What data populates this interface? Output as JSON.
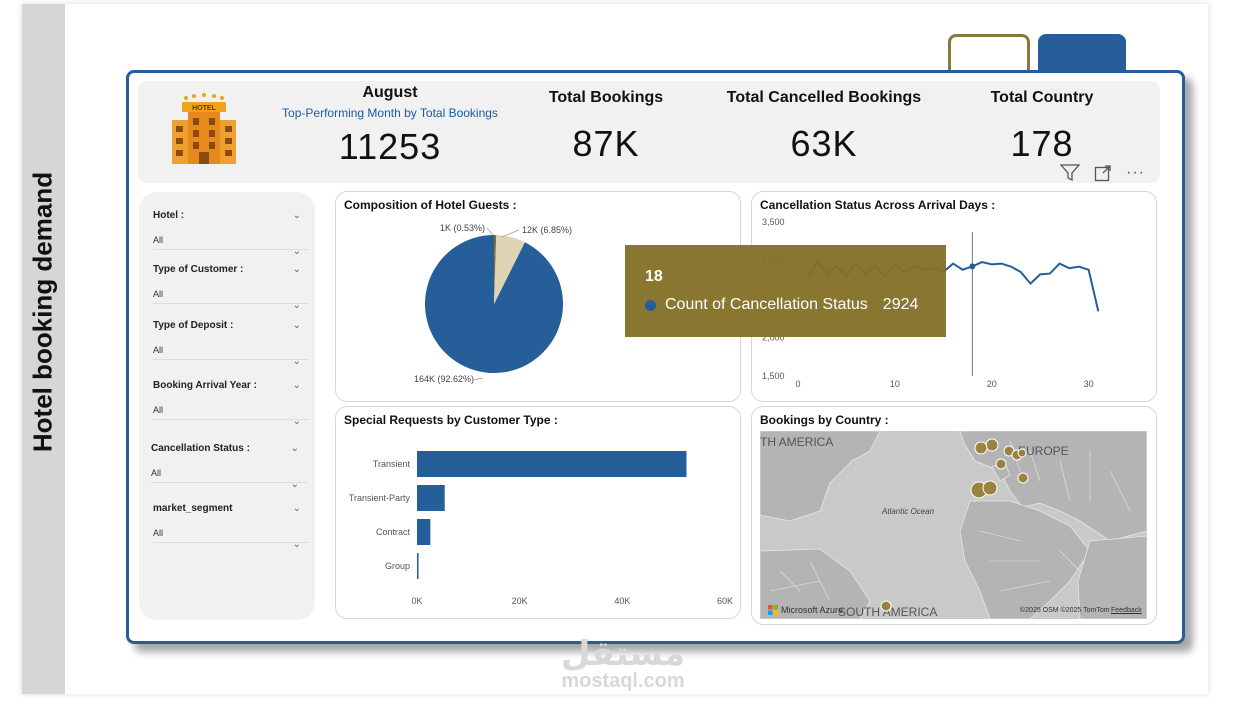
{
  "sidebar_title": "Hotel booking demand",
  "kpis": {
    "month": {
      "label": "August",
      "subtitle": "Top-Performing Month by Total Bookings",
      "value": "11253"
    },
    "total_bookings": {
      "label": "Total Bookings",
      "value": "87K"
    },
    "total_cancelled": {
      "label": "Total Cancelled Bookings",
      "value": "63K"
    },
    "total_country": {
      "label": "Total Country",
      "value": "178"
    }
  },
  "hotel_icon_text": "HOTEL",
  "visual_tools": [
    "filter-icon",
    "focus-mode-icon",
    "more-options-icon"
  ],
  "more_options_glyph": "···",
  "slicers": [
    {
      "label": "Hotel :",
      "value": "All"
    },
    {
      "label": "Type of Customer :",
      "value": "All"
    },
    {
      "label": "Type of Deposit :",
      "value": "All"
    },
    {
      "label": "Booking Arrival Year :",
      "value": "All"
    },
    {
      "label": "Cancellation Status :",
      "value": "All"
    },
    {
      "label": "market_segment",
      "value": "All"
    }
  ],
  "chart_data": [
    {
      "type": "pie",
      "title": "Composition of Hotel Guests :",
      "slices": [
        {
          "label": "164K (92.62%)",
          "value": 92.62,
          "color": "#255e98"
        },
        {
          "label": "12K (6.85%)",
          "value": 6.85,
          "color": "#ddd5b5"
        },
        {
          "label": "1K (0.53%)",
          "value": 0.53,
          "color": "#847028"
        }
      ]
    },
    {
      "type": "line",
      "title": "Cancellation Status Across Arrival Days :",
      "x": [
        1,
        2,
        3,
        4,
        5,
        6,
        7,
        8,
        9,
        10,
        11,
        12,
        13,
        14,
        15,
        16,
        17,
        18,
        19,
        20,
        21,
        22,
        23,
        24,
        25,
        26,
        27,
        28,
        29,
        30,
        31
      ],
      "y": [
        2780,
        2980,
        2830,
        2930,
        2800,
        2960,
        2820,
        2940,
        2790,
        2950,
        2840,
        2930,
        2880,
        2900,
        2850,
        2960,
        2880,
        2924,
        2980,
        2950,
        2960,
        2920,
        2850,
        2700,
        2820,
        2830,
        2960,
        2900,
        2920,
        2880,
        2340
      ],
      "ylim": [
        1500,
        3500
      ],
      "yticks": [
        "3,500",
        "3,000",
        "2,500",
        "2,000",
        "1,500"
      ],
      "xticks": [
        "0",
        "10",
        "20",
        "30"
      ],
      "xlim": [
        0,
        32
      ],
      "color": "#255e98"
    },
    {
      "type": "bar",
      "title": "Special Requests by Customer Type :",
      "categories": [
        "Transient",
        "Transient-Party",
        "Contract",
        "Group"
      ],
      "values": [
        52500,
        5400,
        2600,
        300
      ],
      "xlim": [
        0,
        60000
      ],
      "xticks": [
        "0K",
        "20K",
        "40K",
        "60K"
      ],
      "color": "#255e98"
    }
  ],
  "tooltip": {
    "header": "18",
    "measure": "Count of Cancellation Status",
    "value": "2924"
  },
  "map": {
    "title": "Bookings by Country :",
    "labels": {
      "north_america": "TH AMERICA",
      "europe": "EUROPE",
      "ocean": "Atlantic Ocean",
      "south_america": "SOUTH AMERICA"
    },
    "credit_left": "Microsoft Azure",
    "credit_right": "©2025 OSM ©2025 TomTom",
    "feedback": "Feedback",
    "bubble_color": "#9a8240"
  },
  "watermark": {
    "arabic": "مستقل",
    "latin": "mostaql.com"
  },
  "colors": {
    "primary": "#255e98",
    "gold": "#847028"
  }
}
